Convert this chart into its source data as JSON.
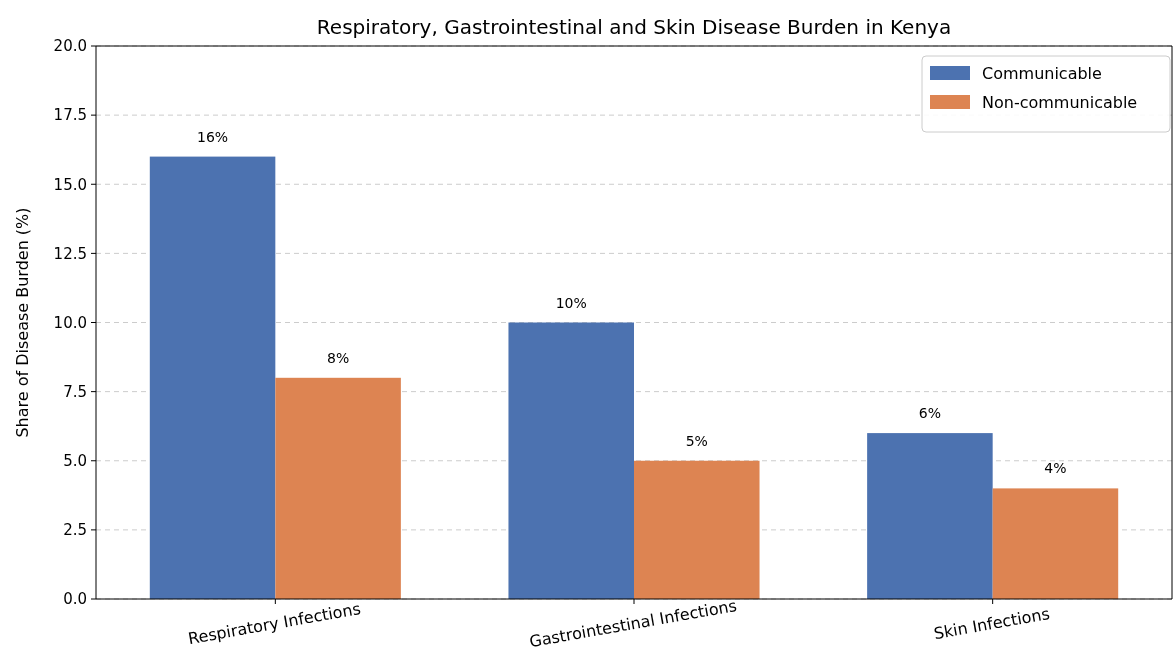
{
  "chart_data": {
    "type": "bar",
    "title": "Respiratory, Gastrointestinal and Skin Disease Burden in Kenya",
    "ylabel": "Share of Disease Burden (%)",
    "categories": [
      "Respiratory Infections",
      "Gastrointestinal Infections",
      "Skin Infections"
    ],
    "series": [
      {
        "name": "Communicable",
        "color": "#4c72b0",
        "values": [
          16,
          10,
          6
        ],
        "value_labels": [
          "16%",
          "10%",
          "6%"
        ]
      },
      {
        "name": "Non-communicable",
        "color": "#dd8452",
        "values": [
          8,
          5,
          4
        ],
        "value_labels": [
          "8%",
          "5%",
          "4%"
        ]
      }
    ],
    "ylim": [
      0,
      20
    ],
    "yticks": [
      {
        "value": 0,
        "label": "0.0"
      },
      {
        "value": 2.5,
        "label": "2.5"
      },
      {
        "value": 5,
        "label": "5.0"
      },
      {
        "value": 7.5,
        "label": "7.5"
      },
      {
        "value": 10,
        "label": "10.0"
      },
      {
        "value": 12.5,
        "label": "12.5"
      },
      {
        "value": 15,
        "label": "15.0"
      },
      {
        "value": 17.5,
        "label": "17.5"
      },
      {
        "value": 20,
        "label": "20.0"
      }
    ],
    "grid": "y",
    "legend": "top right"
  }
}
